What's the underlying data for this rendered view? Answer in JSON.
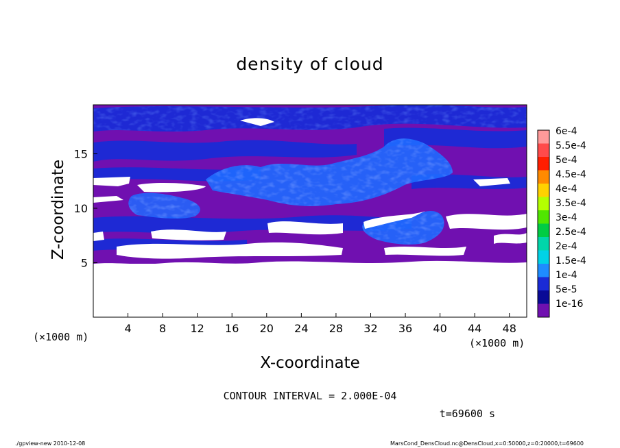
{
  "chart_data": {
    "type": "heatmap",
    "title": "density of cloud",
    "xlabel": "X-coordinate",
    "ylabel": "Z-coordinate",
    "x_unit_left": "(×1000 m)",
    "x_unit_right": "(×1000 m)",
    "xlim": [
      0,
      50
    ],
    "ylim": [
      0,
      19.5
    ],
    "xticks": [
      "4",
      "8",
      "12",
      "16",
      "20",
      "24",
      "28",
      "32",
      "36",
      "40",
      "44",
      "48"
    ],
    "xtick_values": [
      4,
      8,
      12,
      16,
      20,
      24,
      28,
      32,
      36,
      40,
      44,
      48
    ],
    "yticks": [
      "5",
      "10",
      "15"
    ],
    "ytick_values": [
      5,
      10,
      15
    ],
    "colorbar": {
      "labels": [
        "6e-4",
        "5.5e-4",
        "5e-4",
        "4.5e-4",
        "4e-4",
        "3.5e-4",
        "3e-4",
        "2.5e-4",
        "2e-4",
        "1.5e-4",
        "1e-4",
        "5e-5",
        "1e-16"
      ],
      "colors": [
        "#ff9a9a",
        "#ff4a4a",
        "#ff1e00",
        "#ff8a00",
        "#ffd200",
        "#b4ff00",
        "#50e600",
        "#00cc44",
        "#00d6aa",
        "#00d2e6",
        "#1e8cff",
        "#1a2bd6",
        "#0a0a96",
        "#7010b0"
      ]
    },
    "regions": [
      {
        "level": "1e-16",
        "description": "background cloud density",
        "z_range": [
          5,
          19.5
        ]
      },
      {
        "level": "5e-5",
        "description": "horizontal layers"
      },
      {
        "level": "1e-4",
        "description": "cloud patches near x=16-36, z=10-17 and x=30-42, z=7-9"
      }
    ],
    "contour_interval": "CONTOUR INTERVAL = 2.000E-04",
    "time_label": "t=69600 s"
  },
  "footer": {
    "left": "./gpview-new  2010-12-08",
    "right": "MarsCond_DensCloud.nc@DensCloud,x=0:50000,z=0:20000,t=69600"
  }
}
